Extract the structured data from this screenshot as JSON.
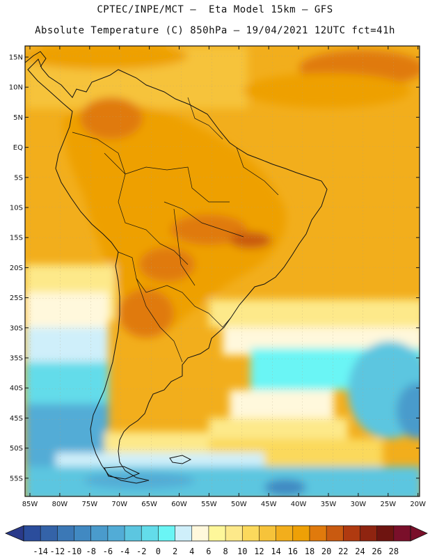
{
  "header": {
    "title_line1": "CPTEC/INPE/MCT –  Eta Model 15km – GFS",
    "title_line2": "Absolute Temperature (C) 850hPa – 19/04/2021 12UTC fct=41h"
  },
  "map": {
    "lat_labels": [
      "15N",
      "10N",
      "5N",
      "EQ",
      "5S",
      "10S",
      "15S",
      "20S",
      "25S",
      "30S",
      "35S",
      "40S",
      "45S",
      "50S",
      "55S"
    ],
    "lon_labels": [
      "85W",
      "80W",
      "75W",
      "70W",
      "65W",
      "60W",
      "55W",
      "50W",
      "45W",
      "40W",
      "35W",
      "30W",
      "25W",
      "20W"
    ]
  },
  "colorbar": {
    "labels": [
      "-14",
      "-12",
      "-10",
      "-8",
      "-6",
      "-4",
      "-2",
      "0",
      "2",
      "4",
      "6",
      "8",
      "10",
      "12",
      "14",
      "16",
      "18",
      "20",
      "22",
      "24",
      "26",
      "28"
    ],
    "colors": [
      "#2b4d9c",
      "#3463a8",
      "#3b78b6",
      "#4189c2",
      "#4a9bcc",
      "#52acd6",
      "#5cc6e0",
      "#63dcea",
      "#6af5f5",
      "#cfeffa",
      "#fff8dc",
      "#fef79a",
      "#fde98a",
      "#fbd95c",
      "#f6c33a",
      "#f2ae1c",
      "#eea006",
      "#e07a0c",
      "#c95a10",
      "#b03a10",
      "#8f2410",
      "#6e1410",
      "#7a0f2a"
    ],
    "left_arrow_color": "#2a3a8a",
    "right_arrow_color": "#7a0f2a"
  }
}
